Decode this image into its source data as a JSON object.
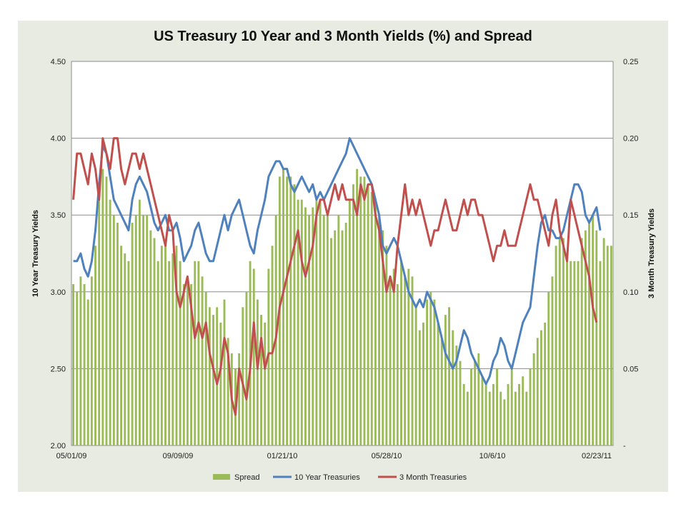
{
  "chart_data": {
    "type": "bar+line",
    "title": "US Treasury 10 Year and 3 Month Yields (%) and Spread",
    "ylabel_left": "10 Year Treasury Yields",
    "ylabel_right": "3 Month Treasury Yields",
    "ylim_left": [
      2.0,
      4.5
    ],
    "ylim_right": [
      0,
      0.25
    ],
    "yticks_left": [
      "2.00",
      "2.50",
      "3.00",
      "3.50",
      "4.00",
      "4.50"
    ],
    "yticks_right": [
      "-",
      "0.05",
      "0.10",
      "0.15",
      "0.20",
      "0.25"
    ],
    "xticks": [
      "05/01/09",
      "09/09/09",
      "01/21/10",
      "05/28/10",
      "10/6/10",
      "02/23/11"
    ],
    "grid": true,
    "legend_position": "bottom",
    "series": [
      {
        "name": "Spread",
        "type": "bar",
        "axis": "left",
        "color": "#9bbb59",
        "values": [
          3.05,
          3.0,
          3.1,
          3.05,
          2.95,
          3.1,
          3.3,
          3.6,
          3.8,
          3.75,
          3.6,
          3.5,
          3.45,
          3.3,
          3.25,
          3.2,
          3.45,
          3.5,
          3.6,
          3.5,
          3.5,
          3.4,
          3.35,
          3.2,
          3.3,
          3.3,
          3.2,
          3.25,
          3.3,
          3.2,
          3.05,
          3.1,
          3.05,
          3.2,
          3.2,
          3.1,
          3.0,
          2.9,
          2.85,
          2.9,
          2.8,
          2.95,
          2.7,
          2.6,
          2.5,
          2.6,
          2.9,
          3.0,
          3.2,
          3.15,
          2.95,
          2.85,
          2.8,
          3.15,
          3.3,
          3.5,
          3.75,
          3.8,
          3.75,
          3.75,
          3.7,
          3.6,
          3.6,
          3.55,
          3.5,
          3.55,
          3.6,
          3.6,
          3.5,
          3.5,
          3.35,
          3.4,
          3.5,
          3.4,
          3.45,
          3.6,
          3.7,
          3.8,
          3.75,
          3.75,
          3.7,
          3.65,
          3.6,
          3.5,
          3.4,
          3.3,
          3.1,
          3.15,
          3.05,
          3.2,
          3.1,
          3.15,
          3.1,
          2.9,
          2.75,
          2.8,
          2.95,
          3.0,
          2.95,
          2.8,
          2.7,
          2.85,
          2.9,
          2.75,
          2.65,
          2.55,
          2.4,
          2.35,
          2.5,
          2.55,
          2.6,
          2.45,
          2.4,
          2.35,
          2.4,
          2.5,
          2.35,
          2.3,
          2.4,
          2.5,
          2.35,
          2.4,
          2.45,
          2.35,
          2.5,
          2.6,
          2.7,
          2.75,
          2.8,
          3.0,
          3.1,
          3.3,
          3.35,
          3.35,
          3.2,
          3.2,
          3.2,
          3.2,
          3.35,
          3.4,
          3.45,
          3.5,
          3.4,
          3.2,
          3.35,
          3.3,
          3.3
        ]
      },
      {
        "name": "10 Year Treasuries",
        "type": "line",
        "axis": "left",
        "color": "#4f81bd",
        "values": [
          3.2,
          3.2,
          3.25,
          3.15,
          3.1,
          3.2,
          3.4,
          3.7,
          3.95,
          3.9,
          3.75,
          3.6,
          3.55,
          3.5,
          3.45,
          3.4,
          3.6,
          3.7,
          3.75,
          3.7,
          3.65,
          3.55,
          3.45,
          3.4,
          3.45,
          3.5,
          3.4,
          3.4,
          3.45,
          3.35,
          3.2,
          3.25,
          3.3,
          3.4,
          3.45,
          3.35,
          3.25,
          3.2,
          3.2,
          3.3,
          3.4,
          3.5,
          3.4,
          3.5,
          3.55,
          3.6,
          3.5,
          3.4,
          3.3,
          3.25,
          3.4,
          3.5,
          3.6,
          3.75,
          3.8,
          3.85,
          3.85,
          3.8,
          3.8,
          3.7,
          3.65,
          3.7,
          3.75,
          3.7,
          3.65,
          3.7,
          3.6,
          3.65,
          3.6,
          3.65,
          3.7,
          3.75,
          3.8,
          3.85,
          3.9,
          4.0,
          3.95,
          3.9,
          3.85,
          3.8,
          3.75,
          3.7,
          3.6,
          3.5,
          3.3,
          3.25,
          3.3,
          3.35,
          3.3,
          3.2,
          3.1,
          3.0,
          2.95,
          2.9,
          2.95,
          2.9,
          3.0,
          2.95,
          2.9,
          2.8,
          2.7,
          2.6,
          2.55,
          2.5,
          2.55,
          2.65,
          2.75,
          2.7,
          2.6,
          2.55,
          2.5,
          2.45,
          2.4,
          2.45,
          2.55,
          2.6,
          2.7,
          2.65,
          2.55,
          2.5,
          2.6,
          2.7,
          2.8,
          2.85,
          2.9,
          3.1,
          3.3,
          3.45,
          3.5,
          3.4,
          3.4,
          3.35,
          3.35,
          3.4,
          3.5,
          3.6,
          3.7,
          3.7,
          3.65,
          3.5,
          3.45,
          3.5,
          3.55,
          3.4
        ]
      },
      {
        "name": "3 Month Treasuries",
        "type": "line",
        "axis": "right",
        "color": "#c0504d",
        "values": [
          0.16,
          0.19,
          0.19,
          0.18,
          0.17,
          0.19,
          0.18,
          0.16,
          0.2,
          0.19,
          0.18,
          0.2,
          0.2,
          0.18,
          0.17,
          0.18,
          0.19,
          0.19,
          0.18,
          0.19,
          0.18,
          0.17,
          0.16,
          0.15,
          0.14,
          0.13,
          0.15,
          0.14,
          0.1,
          0.09,
          0.1,
          0.11,
          0.09,
          0.07,
          0.08,
          0.07,
          0.08,
          0.06,
          0.05,
          0.04,
          0.05,
          0.07,
          0.06,
          0.03,
          0.02,
          0.05,
          0.04,
          0.03,
          0.05,
          0.08,
          0.05,
          0.07,
          0.05,
          0.06,
          0.06,
          0.07,
          0.09,
          0.1,
          0.11,
          0.12,
          0.13,
          0.14,
          0.12,
          0.11,
          0.12,
          0.13,
          0.15,
          0.16,
          0.16,
          0.15,
          0.16,
          0.17,
          0.16,
          0.17,
          0.16,
          0.16,
          0.16,
          0.15,
          0.17,
          0.16,
          0.17,
          0.17,
          0.15,
          0.14,
          0.12,
          0.1,
          0.11,
          0.1,
          0.13,
          0.15,
          0.17,
          0.15,
          0.16,
          0.15,
          0.16,
          0.15,
          0.14,
          0.13,
          0.14,
          0.14,
          0.15,
          0.16,
          0.15,
          0.14,
          0.14,
          0.15,
          0.16,
          0.15,
          0.16,
          0.16,
          0.15,
          0.15,
          0.14,
          0.13,
          0.12,
          0.13,
          0.13,
          0.14,
          0.13,
          0.13,
          0.13,
          0.14,
          0.15,
          0.16,
          0.17,
          0.16,
          0.16,
          0.15,
          0.14,
          0.13,
          0.15,
          0.16,
          0.14,
          0.13,
          0.12,
          0.16,
          0.15,
          0.14,
          0.13,
          0.12,
          0.11,
          0.09,
          0.08
        ]
      }
    ]
  }
}
